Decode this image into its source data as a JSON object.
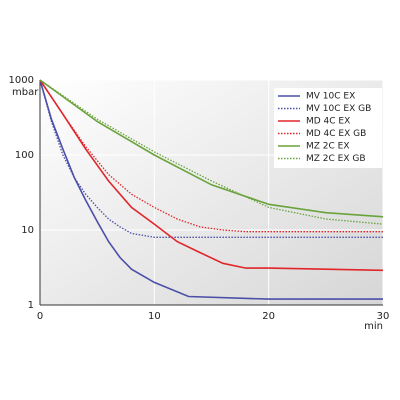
{
  "chart_data": {
    "type": "line",
    "yscale": "log",
    "grid": true,
    "legend": "upper right",
    "ylabel": "mbar",
    "xlabel": "min",
    "xlim": [
      0,
      30
    ],
    "xticks": [
      0,
      10,
      20,
      30
    ],
    "ylim": [
      1,
      1000
    ],
    "yticks": [
      1,
      10,
      100,
      1000
    ],
    "series": [
      {
        "name": "MV 10C EX",
        "color": "#4b4fa8",
        "linestyle": "solid",
        "x": [
          0,
          1,
          2,
          3,
          4,
          5,
          6,
          7,
          8,
          10,
          13,
          20,
          30
        ],
        "values": [
          1000,
          300,
          120,
          50,
          25,
          13,
          7,
          4.3,
          3,
          2,
          1.3,
          1.2,
          1.2
        ]
      },
      {
        "name": "MV 10C EX GB",
        "color": "#4b4fa8",
        "linestyle": "dotted",
        "x": [
          0,
          1,
          2,
          3,
          4,
          5,
          6,
          7,
          8,
          10,
          15,
          30
        ],
        "values": [
          1000,
          280,
          100,
          50,
          30,
          20,
          14,
          11,
          9,
          8,
          8,
          8
        ]
      },
      {
        "name": "MD 4C EX",
        "color": "#e0262b",
        "linestyle": "solid",
        "x": [
          0,
          2,
          4,
          6,
          8,
          10,
          12,
          14,
          16,
          18,
          20,
          30
        ],
        "values": [
          1000,
          350,
          120,
          45,
          20,
          12,
          7,
          5,
          3.6,
          3.1,
          3.1,
          2.9
        ]
      },
      {
        "name": "MD 4C EX GB",
        "color": "#e0262b",
        "linestyle": "dotted",
        "x": [
          0,
          2,
          4,
          6,
          8,
          10,
          12,
          14,
          16,
          18,
          20,
          30
        ],
        "values": [
          1000,
          350,
          130,
          55,
          30,
          20,
          14,
          11,
          10,
          9.5,
          9.5,
          9.5
        ]
      },
      {
        "name": "MZ 2C EX",
        "color": "#6aa33c",
        "linestyle": "solid",
        "x": [
          0,
          5,
          10,
          15,
          20,
          25,
          30
        ],
        "values": [
          1000,
          280,
          100,
          40,
          22,
          17,
          15
        ]
      },
      {
        "name": "MZ 2C EX GB",
        "color": "#6aa33c",
        "linestyle": "dotted",
        "x": [
          0,
          5,
          10,
          15,
          20,
          25,
          30
        ],
        "values": [
          1000,
          300,
          110,
          45,
          20,
          14,
          12
        ]
      }
    ]
  }
}
